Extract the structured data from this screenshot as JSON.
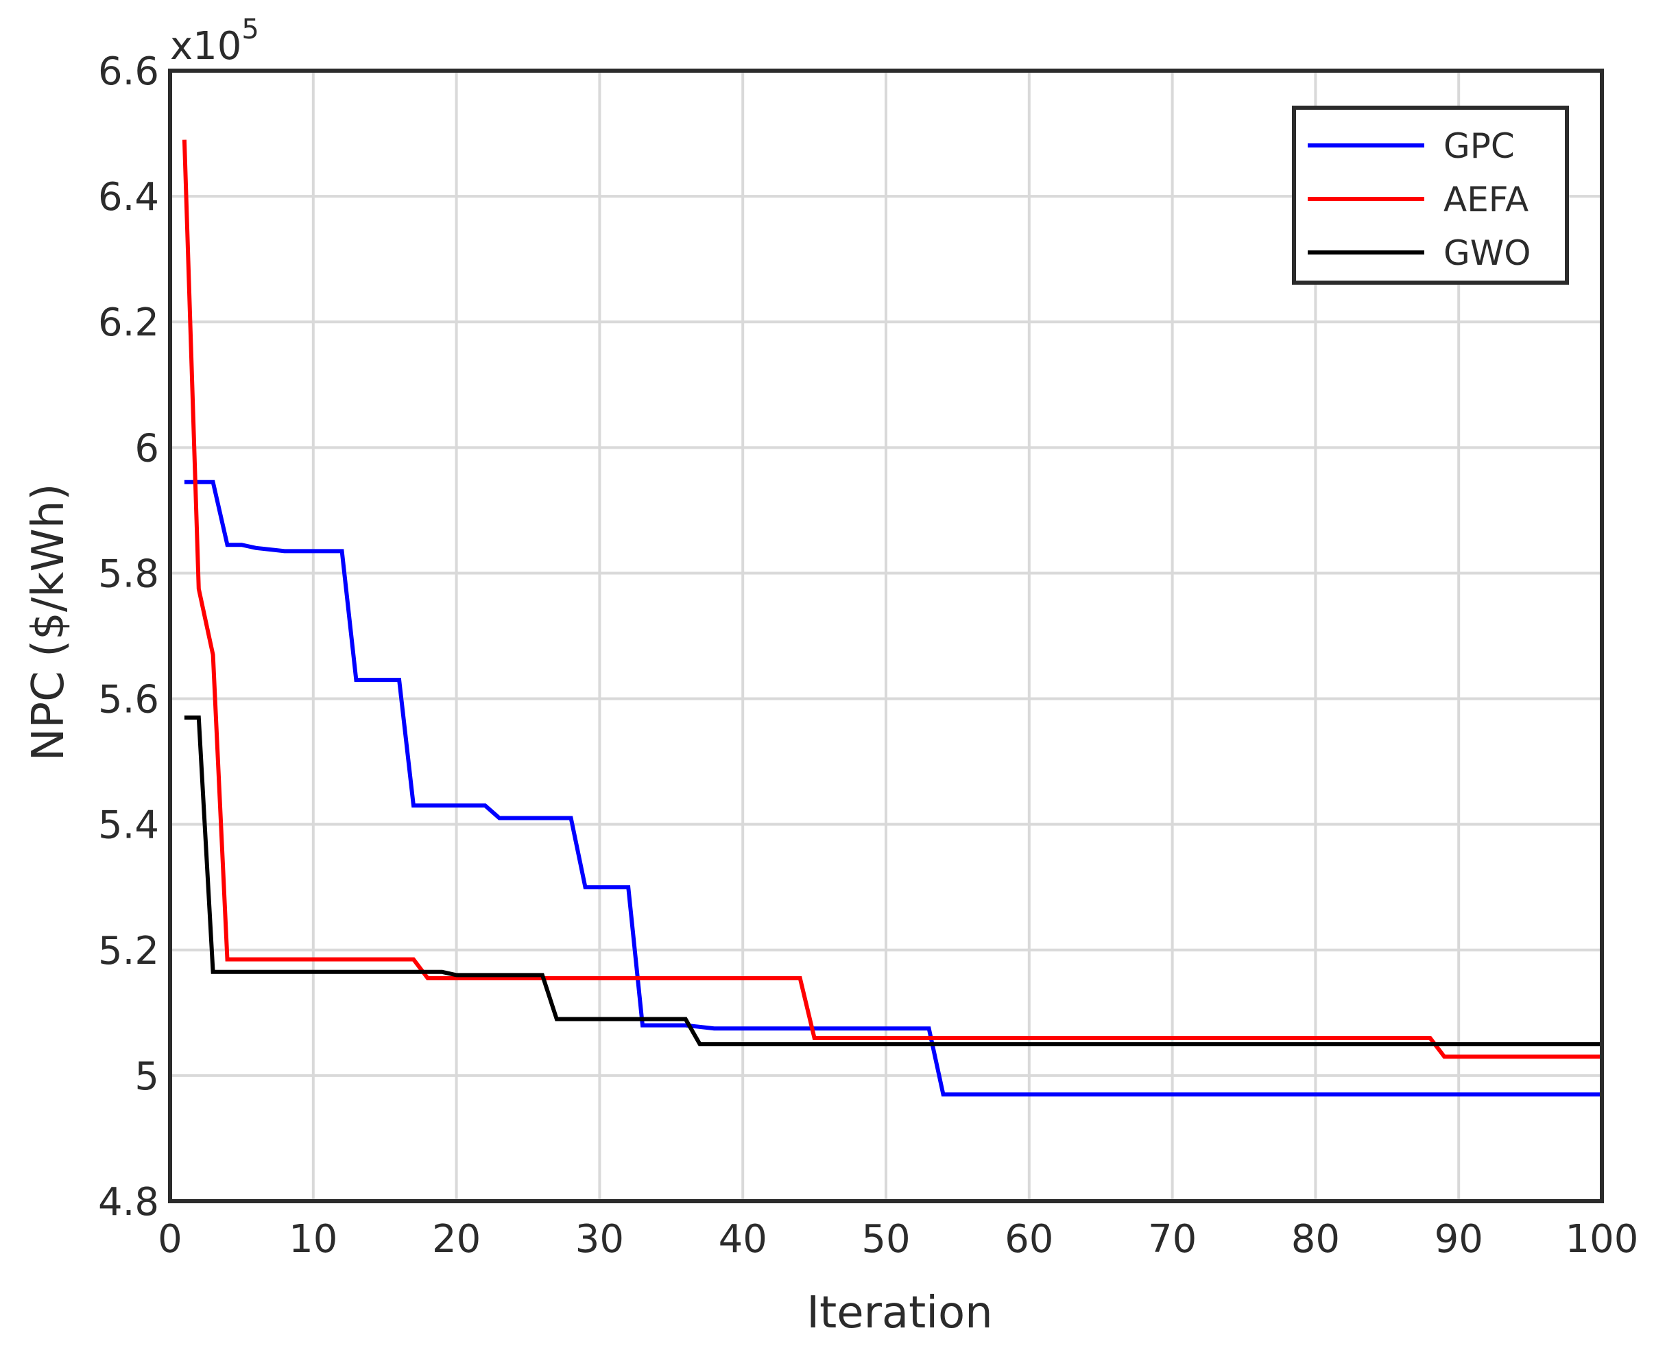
{
  "chart_data": {
    "type": "line",
    "title": "",
    "xlabel": "Iteration",
    "ylabel": "NPC ($/kWh)",
    "xlim": [
      0,
      100
    ],
    "ylim": [
      4.8,
      6.6
    ],
    "y_multiplier_label": "x10",
    "y_multiplier_exponent": "5",
    "xticks": [
      0,
      10,
      20,
      30,
      40,
      50,
      60,
      70,
      80,
      90,
      100
    ],
    "yticks": [
      4.8,
      5,
      5.2,
      5.4,
      5.6,
      5.8,
      6,
      6.2,
      6.4,
      6.6
    ],
    "xtick_labels": [
      "0",
      "10",
      "20",
      "30",
      "40",
      "50",
      "60",
      "70",
      "80",
      "90",
      "100"
    ],
    "ytick_labels": [
      "4.8",
      "5",
      "5.2",
      "5.4",
      "5.6",
      "5.8",
      "6",
      "6.2",
      "6.4",
      "6.6"
    ],
    "grid": true,
    "legend_position": "top-right",
    "series": [
      {
        "name": "GPC",
        "color": "#0000ff",
        "points": [
          [
            1,
            5.945
          ],
          [
            3,
            5.945
          ],
          [
            4,
            5.845
          ],
          [
            5,
            5.845
          ],
          [
            6,
            5.84
          ],
          [
            8,
            5.835
          ],
          [
            12,
            5.835
          ],
          [
            13,
            5.63
          ],
          [
            16,
            5.63
          ],
          [
            17,
            5.43
          ],
          [
            22,
            5.43
          ],
          [
            23,
            5.41
          ],
          [
            28,
            5.41
          ],
          [
            29,
            5.3
          ],
          [
            32,
            5.3
          ],
          [
            33,
            5.08
          ],
          [
            36,
            5.08
          ],
          [
            38,
            5.075
          ],
          [
            53,
            5.075
          ],
          [
            54,
            4.97
          ],
          [
            100,
            4.97
          ]
        ]
      },
      {
        "name": "AEFA",
        "color": "#ff0000",
        "points": [
          [
            1,
            6.49
          ],
          [
            2,
            5.775
          ],
          [
            3,
            5.67
          ],
          [
            4,
            5.185
          ],
          [
            17,
            5.185
          ],
          [
            18,
            5.155
          ],
          [
            44,
            5.155
          ],
          [
            45,
            5.06
          ],
          [
            88,
            5.06
          ],
          [
            89,
            5.03
          ],
          [
            100,
            5.03
          ]
        ]
      },
      {
        "name": "GWO",
        "color": "#000000",
        "points": [
          [
            1,
            5.57
          ],
          [
            2,
            5.57
          ],
          [
            3,
            5.165
          ],
          [
            19,
            5.165
          ],
          [
            20,
            5.16
          ],
          [
            26,
            5.16
          ],
          [
            27,
            5.09
          ],
          [
            36,
            5.09
          ],
          [
            37,
            5.05
          ],
          [
            100,
            5.05
          ]
        ]
      }
    ]
  }
}
